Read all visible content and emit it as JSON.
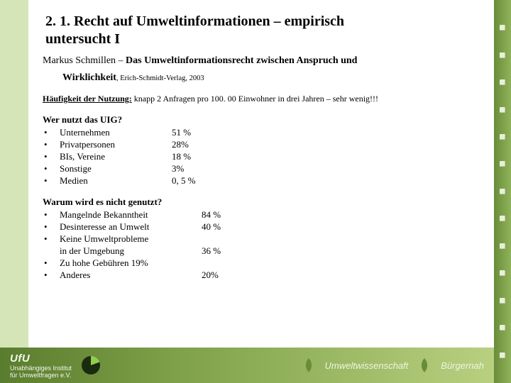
{
  "title_line1": "2. 1. Recht auf Umweltinformationen – empirisch",
  "title_line2": "untersucht I",
  "author_line": "Markus Schmillen – ",
  "work_title": "Das Umweltinformationsrecht zwischen Anspruch und",
  "work_title2": "Wirklichkeit",
  "pubnote": ", Erich-Schmidt-Verlag, 2003",
  "freq_label": "Häufigkeit der Nutzung:",
  "freq_text": " knapp 2 Anfragen pro 100. 00 Einwohner in drei Jahren – sehr wenig!!!",
  "who_heading": "Wer nutzt das UIG?",
  "who_items": [
    {
      "label": "Unternehmen",
      "value": "51 %"
    },
    {
      "label": "Privatpersonen",
      "value": "28%"
    },
    {
      "label": "BIs, Vereine",
      "value": "18 %"
    },
    {
      "label": "Sonstige",
      "value": "3%"
    },
    {
      "label": "Medien",
      "value": "0, 5 %"
    }
  ],
  "why_heading": "Warum wird es nicht genutzt?",
  "why_items": [
    {
      "label": "Mangelnde Bekanntheit",
      "value": "84 %"
    },
    {
      "label": "Desinteresse an Umwelt",
      "value": "40 %"
    },
    {
      "label": "Keine Umweltprobleme",
      "value": ""
    },
    {
      "label": "in der Umgebung",
      "value": "36 %",
      "cont": true
    },
    {
      "label": "Zu hohe Gebühren 19%",
      "value": ""
    },
    {
      "label": "Anderes",
      "value": "20%"
    }
  ],
  "footer": {
    "brand": "UfU",
    "brand_sub1": "Unabhängiges Institut",
    "brand_sub2": "für Umweltfragen e.V.",
    "tag1": "Umweltwissenschaft",
    "tag2": "Bürgernah"
  },
  "colors": {
    "left_band": "#d5e5b8",
    "right_band_dark": "#6a8c3a",
    "right_band_light": "#8fb35a",
    "footer_grad_a": "#5a7c2e",
    "footer_grad_b": "#7ea048",
    "footer_grad_c": "#b8d080"
  }
}
